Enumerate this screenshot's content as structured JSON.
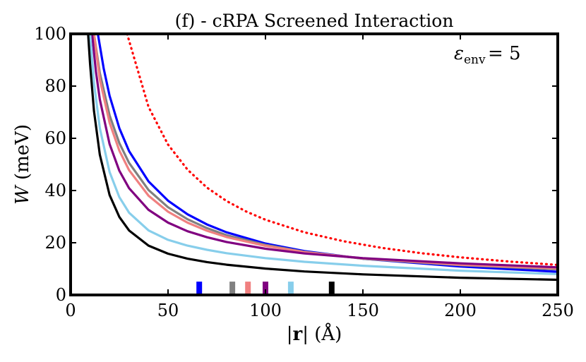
{
  "chart_data": {
    "type": "line",
    "title": "(f) - cRPA Screened Interaction",
    "xlabel": "|r| (Å)",
    "ylabel": "W (meV)",
    "xlim": [
      0,
      250
    ],
    "ylim": [
      0,
      100
    ],
    "xticks": [
      0,
      50,
      100,
      150,
      200,
      250
    ],
    "yticks": [
      0,
      20,
      40,
      60,
      80,
      100
    ],
    "annotation": "ε_env = 5",
    "grid": false,
    "series": [
      {
        "name": "bare (dotted)",
        "color": "#ff0000",
        "style": "dotted",
        "x": [
          29,
          40,
          50,
          60,
          70,
          80,
          90,
          100,
          120,
          140,
          160,
          180,
          200,
          225,
          250
        ],
        "y": [
          100,
          72.0,
          57.6,
          48.0,
          41.1,
          36.0,
          32.0,
          28.8,
          24.0,
          20.6,
          18.0,
          16.0,
          14.4,
          12.8,
          11.5
        ]
      },
      {
        "name": "blue",
        "color": "#0000ff",
        "style": "solid",
        "x": [
          14,
          17,
          20,
          25,
          30,
          40,
          50,
          60,
          70,
          80,
          100,
          120,
          150,
          200,
          250
        ],
        "y": [
          100,
          86.7,
          76.3,
          63.9,
          55.1,
          43.5,
          36.1,
          30.9,
          27.0,
          24.0,
          19.7,
          16.8,
          13.9,
          10.9,
          8.9
        ]
      },
      {
        "name": "gray",
        "color": "#808080",
        "style": "solid",
        "x": [
          12,
          15,
          20,
          25,
          30,
          40,
          50,
          60,
          70,
          80,
          100,
          120,
          150,
          200,
          250
        ],
        "y": [
          100,
          85.0,
          68.8,
          58.2,
          50.6,
          40.2,
          33.6,
          29.0,
          25.6,
          22.9,
          19.2,
          16.5,
          13.9,
          11.4,
          9.8
        ]
      },
      {
        "name": "salmon",
        "color": "#f08080",
        "style": "solid",
        "x": [
          12,
          15,
          20,
          25,
          30,
          40,
          50,
          60,
          70,
          80,
          100,
          120,
          150,
          200,
          250
        ],
        "y": [
          100,
          82.5,
          66.0,
          55.3,
          47.8,
          38.0,
          31.9,
          27.7,
          24.6,
          22.2,
          18.8,
          16.4,
          14.0,
          11.6,
          10.2
        ]
      },
      {
        "name": "purple",
        "color": "#800080",
        "style": "solid",
        "x": [
          11,
          13,
          15,
          20,
          25,
          30,
          40,
          50,
          60,
          70,
          80,
          100,
          120,
          150,
          200,
          250
        ],
        "y": [
          100,
          85.5,
          74.9,
          57.8,
          47.6,
          40.9,
          32.6,
          27.7,
          24.4,
          22.1,
          20.3,
          17.7,
          15.9,
          14.1,
          12.1,
          10.6
        ]
      },
      {
        "name": "skyblue",
        "color": "#87ceeb",
        "style": "solid",
        "x": [
          10,
          12,
          15,
          20,
          25,
          30,
          40,
          50,
          60,
          70,
          80,
          100,
          120,
          150,
          200,
          250
        ],
        "y": [
          100,
          81.2,
          63.9,
          47.1,
          37.5,
          31.5,
          24.7,
          21.1,
          18.9,
          17.3,
          16.0,
          14.1,
          12.7,
          11.2,
          9.3,
          8.0
        ]
      },
      {
        "name": "black",
        "color": "#000000",
        "style": "solid",
        "x": [
          9,
          10,
          12,
          15,
          20,
          25,
          30,
          40,
          50,
          60,
          70,
          80,
          100,
          120,
          150,
          200,
          250
        ],
        "y": [
          100,
          88.4,
          70.5,
          53.7,
          38.3,
          29.9,
          24.7,
          18.9,
          15.8,
          13.9,
          12.6,
          11.6,
          10.1,
          9.0,
          7.9,
          6.6,
          5.8
        ]
      }
    ],
    "markers": [
      {
        "x": 66,
        "color": "#0000ff"
      },
      {
        "x": 83,
        "color": "#808080"
      },
      {
        "x": 91,
        "color": "#f08080"
      },
      {
        "x": 100,
        "color": "#800080"
      },
      {
        "x": 113,
        "color": "#87ceeb"
      },
      {
        "x": 134,
        "color": "#000000"
      }
    ]
  }
}
